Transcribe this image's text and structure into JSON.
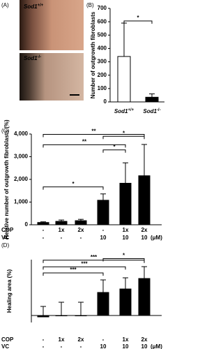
{
  "panel_labels": [
    "(A)",
    "(B)",
    "(C)",
    "(D)"
  ],
  "images": [
    {
      "gene": "Sod1",
      "genotype": "+/+"
    },
    {
      "gene": "Sod1",
      "genotype": "-/-"
    }
  ],
  "chart_data": [
    {
      "type": "bar",
      "y_label": "Number of outgrowth fibroblasts",
      "categories": [
        {
          "gene": "Sod1",
          "genotype": "+/+"
        },
        {
          "gene": "Sod1",
          "genotype": "-/-"
        }
      ],
      "values": [
        340,
        35
      ],
      "errors": [
        250,
        25
      ],
      "colors": [
        "#ffffff",
        "#000000"
      ],
      "ylim": [
        0,
        700
      ],
      "yticks": [
        0,
        100,
        200,
        300,
        400,
        500,
        600,
        700
      ],
      "significance": [
        {
          "pair": [
            0,
            1
          ],
          "label": "*"
        }
      ]
    },
    {
      "type": "bar",
      "y_label": "Relative number of outgrowth fibroblasts (%)",
      "row_labels": [
        "COP",
        "VC"
      ],
      "unit": "(μM)",
      "categories": [
        [
          "-",
          "-"
        ],
        [
          "1x",
          "-"
        ],
        [
          "2x",
          "-"
        ],
        [
          "-",
          "10"
        ],
        [
          "1x",
          "10"
        ],
        [
          "2x",
          "10"
        ]
      ],
      "values": [
        100,
        150,
        180,
        1080,
        1830,
        2160
      ],
      "errors": [
        30,
        60,
        60,
        280,
        900,
        1380
      ],
      "color": "#000000",
      "ylim": [
        0,
        4000
      ],
      "yticks": [
        0,
        {
          "value": 1000,
          "label": "1,000"
        },
        {
          "value": 2000,
          "label": "2,000"
        },
        {
          "value": 3000,
          "label": "3,000"
        },
        {
          "value": 4000,
          "label": "4,000"
        }
      ],
      "significance": [
        {
          "pair": [
            0,
            3
          ],
          "label": "*"
        },
        {
          "pair": [
            3,
            4
          ],
          "label": "*"
        },
        {
          "pair": [
            0,
            4
          ],
          "label": "**"
        },
        {
          "pair": [
            3,
            5
          ],
          "label": "*"
        },
        {
          "pair": [
            0,
            5
          ],
          "label": "**"
        }
      ]
    },
    {
      "type": "bar",
      "y_label": "Healing  area (%)",
      "row_labels": [
        "COP",
        "VC"
      ],
      "unit": "(μM)",
      "categories": [
        [
          "-",
          "-"
        ],
        [
          "1x",
          "-"
        ],
        [
          "2x",
          "-"
        ],
        [
          "-",
          "10"
        ],
        [
          "1x",
          "10"
        ],
        [
          "2x",
          "10"
        ]
      ],
      "values": [
        -1,
        0,
        0,
        16.5,
        19,
        26.5
      ],
      "errors": [
        7.5,
        9.5,
        9.5,
        9,
        8,
        8.5
      ],
      "color": "#000000",
      "ylim": [
        -5,
        40
      ],
      "significance": [
        {
          "pair": [
            0,
            3
          ],
          "label": "***"
        },
        {
          "pair": [
            0,
            4
          ],
          "label": "***"
        },
        {
          "pair": [
            0,
            5
          ],
          "label": "***"
        },
        {
          "pair": [
            3,
            5
          ],
          "label": "*"
        }
      ]
    }
  ]
}
